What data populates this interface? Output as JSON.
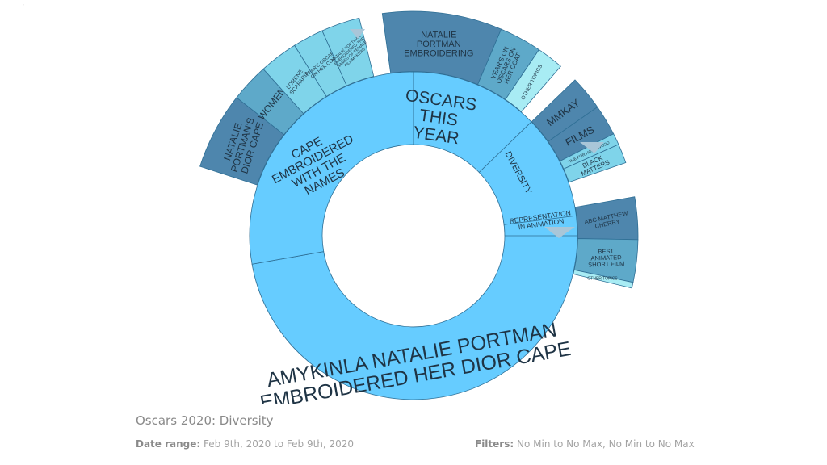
{
  "chart_data": {
    "type": "sunburst",
    "title": "Oscars 2020: Diversity",
    "colors": {
      "ring1": "#66ccff",
      "ring2_dark": "#4e86ad",
      "ring2_mid": "#5ea9c9",
      "ring2_light": "#7fd4ea",
      "ring2_pale": "#a8ecf4",
      "stroke": "#2f6f95",
      "text": "#1f3445",
      "arrow": "#a9c6d8"
    },
    "ring1": [
      {
        "label": "AMYKINLA NATALIE PORTMAN EMBROIDERED HER DIOR CAPE",
        "lines": [
          "AMYKINLA NATALIE PORTMAN",
          "EMBROIDERED HER DIOR CAPE"
        ]
      },
      {
        "label": "CAPE EMBROIDERED WITH THE NAMES",
        "lines": [
          "CAPE",
          "EMBROIDERED",
          "WITH THE",
          "NAMES"
        ]
      },
      {
        "label": "OSCARS THIS YEAR",
        "lines": [
          "OSCARS",
          "THIS",
          "YEAR"
        ]
      },
      {
        "label": "DIVERSITY",
        "lines": [
          "DIVERSITY"
        ]
      },
      {
        "label": "REPRESENTATION IN ANIMATION",
        "lines": [
          "REPRESENTATION",
          "IN ANIMATION"
        ]
      }
    ],
    "ring2": [
      {
        "label": "NATALIE PORTMAN'S DIOR CAPE",
        "lines": [
          "NATALIE",
          "PORTMAN'S",
          "DIOR CAPE"
        ],
        "parent": "CAPE EMBROIDERED WITH THE NAMES"
      },
      {
        "label": "WOMEN",
        "lines": [
          "WOMEN"
        ],
        "parent": "CAPE EMBROIDERED WITH THE NAMES"
      },
      {
        "label": "LORENE SCAFARIA",
        "lines": [
          "LORENE",
          "SCAFARIA"
        ],
        "parent": "CAPE EMBROIDERED WITH THE NAMES"
      },
      {
        "label": "YEAR'S OSCARS ON HER COAT",
        "lines": [
          "YEAR'S OSCARS",
          "ON HER COAT"
        ],
        "parent": "CAPE EMBROIDERED WITH THE NAMES"
      },
      {
        "label": "NATALIE PORTMAN EMBROIDERED THE NAMES OF FEMALE FILMMAKERS",
        "lines": [
          "NATALIE PORTMAN",
          "EMBROIDERED THE",
          "NAMES OF FEMALE",
          "FILMMAKERS"
        ],
        "parent": "CAPE EMBROIDERED WITH THE NAMES"
      },
      {
        "label": "NATALIE PORTMAN EMBROIDERING",
        "lines": [
          "NATALIE",
          "PORTMAN",
          "EMBROIDERING"
        ],
        "parent": "OSCARS THIS YEAR"
      },
      {
        "label": "YEAR'S OSCARS ON HER COAT",
        "lines": [
          "YEAR'S ON",
          "OSCARS ON",
          "HER COAT"
        ],
        "parent": "OSCARS THIS YEAR"
      },
      {
        "label": "OTHER TOPICS",
        "lines": [
          "OTHER TOPICS"
        ],
        "parent": "OSCARS THIS YEAR"
      },
      {
        "label": "MMKAY",
        "lines": [
          "MMKAY"
        ],
        "parent": "DIVERSITY"
      },
      {
        "label": "FILMS",
        "lines": [
          "FILMS"
        ],
        "parent": "DIVERSITY"
      },
      {
        "label": "TIME FOR HOLLYWOOD",
        "lines": [
          "TIME FOR HOLLYWOOD"
        ],
        "parent": "DIVERSITY"
      },
      {
        "label": "BLACK MATTERS",
        "lines": [
          "BLACK",
          "MATTERS"
        ],
        "parent": "DIVERSITY"
      },
      {
        "label": "ABC MATTHEW CHERRY",
        "lines": [
          "ABC MATTHEW",
          "CHERRY"
        ],
        "parent": "REPRESENTATION IN ANIMATION"
      },
      {
        "label": "BEST ANIMATED SHORT FILM",
        "lines": [
          "BEST",
          "ANIMATED",
          "SHORT FILM"
        ],
        "parent": "REPRESENTATION IN ANIMATION"
      },
      {
        "label": "OTHER TOPICS",
        "lines": [
          "OTHER TOPICS"
        ],
        "parent": "REPRESENTATION IN ANIMATION"
      }
    ]
  },
  "caption": {
    "title": "Oscars 2020: Diversity",
    "date_label": "Date range:",
    "date_value": "Feb 9th, 2020 to Feb 9th, 2020",
    "filters_label": "Filters:",
    "filters_value": "No Min to No Max, No Min to No Max"
  }
}
